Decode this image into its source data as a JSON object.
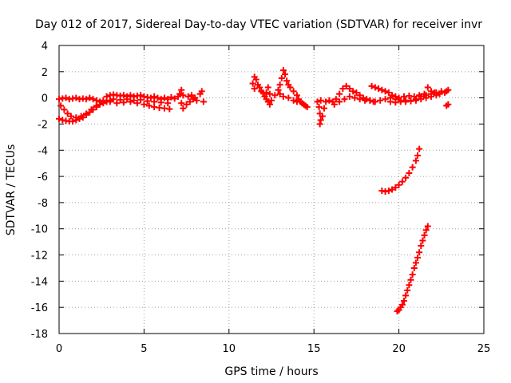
{
  "chart_data": {
    "type": "scatter",
    "title": "Day 012 of 2017, Sidereal Day-to-day VTEC variation (SDTVAR) for receiver invr",
    "xlabel": "GPS time / hours",
    "ylabel": "SDTVAR / TECUs",
    "xlim": [
      0,
      25
    ],
    "ylim": [
      -18,
      4
    ],
    "xticks": [
      0,
      5,
      10,
      15,
      20,
      25
    ],
    "yticks": [
      -18,
      -16,
      -14,
      -12,
      -10,
      -8,
      -6,
      -4,
      -2,
      0,
      2,
      4
    ],
    "grid": true,
    "legend": "none",
    "marker": "plus",
    "color": "#ff0000",
    "series": [
      {
        "points": [
          [
            0.0,
            -0.1
          ],
          [
            0.2,
            -0.05
          ],
          [
            0.4,
            0.0
          ],
          [
            0.6,
            -0.1
          ],
          [
            0.8,
            -0.05
          ],
          [
            1.0,
            0.0
          ],
          [
            1.2,
            -0.1
          ],
          [
            1.4,
            -0.05
          ],
          [
            1.6,
            -0.1
          ],
          [
            1.8,
            0.0
          ],
          [
            2.0,
            -0.1
          ],
          [
            2.2,
            -0.2
          ],
          [
            2.4,
            -0.3
          ],
          [
            2.6,
            -0.2
          ],
          [
            0.0,
            -1.6
          ],
          [
            0.2,
            -1.7
          ],
          [
            0.4,
            -1.75
          ],
          [
            0.6,
            -1.8
          ],
          [
            0.8,
            -1.8
          ],
          [
            1.0,
            -1.7
          ],
          [
            1.2,
            -1.6
          ],
          [
            1.4,
            -1.5
          ],
          [
            1.6,
            -1.3
          ],
          [
            1.8,
            -1.1
          ],
          [
            2.0,
            -0.9
          ],
          [
            2.2,
            -0.7
          ],
          [
            2.4,
            -0.5
          ],
          [
            2.6,
            -0.4
          ],
          [
            2.8,
            -0.3
          ],
          [
            3.0,
            -0.2
          ],
          [
            0.1,
            -0.6
          ],
          [
            0.3,
            -0.9
          ],
          [
            0.5,
            -1.2
          ],
          [
            0.7,
            -1.4
          ],
          [
            1.0,
            -1.5
          ],
          [
            1.3,
            -1.4
          ],
          [
            1.6,
            -1.2
          ],
          [
            1.9,
            -0.9
          ],
          [
            2.2,
            -0.6
          ],
          [
            2.8,
            0.1
          ],
          [
            3.0,
            0.2
          ],
          [
            3.2,
            0.25
          ],
          [
            3.4,
            0.2
          ],
          [
            3.6,
            0.15
          ],
          [
            3.8,
            0.2
          ],
          [
            4.0,
            0.1
          ],
          [
            4.2,
            0.2
          ],
          [
            4.4,
            0.1
          ],
          [
            4.6,
            0.15
          ],
          [
            4.8,
            0.2
          ],
          [
            5.0,
            0.1
          ],
          [
            5.2,
            0.05
          ],
          [
            5.4,
            0.0
          ],
          [
            5.6,
            0.1
          ],
          [
            5.8,
            0.0
          ],
          [
            6.0,
            -0.1
          ],
          [
            6.2,
            0.0
          ],
          [
            6.4,
            -0.1
          ],
          [
            3.0,
            -0.3
          ],
          [
            3.4,
            -0.4
          ],
          [
            3.8,
            -0.35
          ],
          [
            4.2,
            -0.3
          ],
          [
            4.6,
            -0.4
          ],
          [
            5.0,
            -0.5
          ],
          [
            5.3,
            -0.6
          ],
          [
            5.6,
            -0.7
          ],
          [
            5.9,
            -0.75
          ],
          [
            6.2,
            -0.8
          ],
          [
            6.5,
            -0.85
          ],
          [
            3.2,
            -0.1
          ],
          [
            3.6,
            -0.15
          ],
          [
            4.0,
            -0.1
          ],
          [
            4.4,
            -0.2
          ],
          [
            4.8,
            -0.15
          ],
          [
            5.2,
            -0.25
          ],
          [
            5.6,
            -0.3
          ],
          [
            6.0,
            -0.35
          ],
          [
            6.4,
            -0.4
          ],
          [
            6.6,
            0.05
          ],
          [
            6.8,
            -0.05
          ],
          [
            7.0,
            0.1
          ],
          [
            7.1,
            0.3
          ],
          [
            7.2,
            0.6
          ],
          [
            7.3,
            0.2
          ],
          [
            7.2,
            -0.4
          ],
          [
            7.3,
            -0.8
          ],
          [
            7.5,
            -0.5
          ],
          [
            7.7,
            -0.3
          ],
          [
            7.9,
            -0.1
          ],
          [
            8.1,
            -0.2
          ],
          [
            8.3,
            0.3
          ],
          [
            8.4,
            0.5
          ],
          [
            8.5,
            -0.3
          ],
          [
            7.6,
            0.1
          ],
          [
            7.8,
            0.2
          ],
          [
            8.0,
            0.0
          ],
          [
            11.4,
            1.1
          ],
          [
            11.5,
            1.6
          ],
          [
            11.6,
            1.4
          ],
          [
            11.7,
            1.0
          ],
          [
            11.8,
            0.8
          ],
          [
            11.5,
            0.7
          ],
          [
            11.9,
            0.5
          ],
          [
            12.0,
            0.4
          ],
          [
            12.1,
            0.1
          ],
          [
            12.2,
            -0.1
          ],
          [
            12.3,
            -0.3
          ],
          [
            12.4,
            -0.5
          ],
          [
            12.2,
            0.4
          ],
          [
            12.3,
            0.8
          ],
          [
            12.4,
            0.3
          ],
          [
            12.5,
            -0.2
          ],
          [
            12.7,
            0.2
          ],
          [
            12.9,
            0.6
          ],
          [
            13.0,
            1.0
          ],
          [
            13.1,
            1.5
          ],
          [
            13.2,
            2.1
          ],
          [
            13.3,
            1.8
          ],
          [
            13.4,
            1.3
          ],
          [
            13.5,
            1.0
          ],
          [
            13.6,
            0.8
          ],
          [
            13.8,
            0.5
          ],
          [
            14.0,
            0.2
          ],
          [
            14.1,
            -0.1
          ],
          [
            14.2,
            -0.3
          ],
          [
            14.4,
            -0.5
          ],
          [
            14.6,
            -0.7
          ],
          [
            13.0,
            0.3
          ],
          [
            13.2,
            0.1
          ],
          [
            13.5,
            0.0
          ],
          [
            13.8,
            -0.2
          ],
          [
            14.0,
            -0.3
          ],
          [
            14.3,
            -0.4
          ],
          [
            14.5,
            -0.6
          ],
          [
            15.2,
            -0.3
          ],
          [
            15.3,
            -0.7
          ],
          [
            15.35,
            -1.2
          ],
          [
            15.4,
            -1.7
          ],
          [
            15.35,
            -2.0
          ],
          [
            15.5,
            -1.4
          ],
          [
            15.6,
            -0.8
          ],
          [
            15.4,
            -0.2
          ],
          [
            15.7,
            -0.3
          ],
          [
            15.9,
            -0.2
          ],
          [
            16.1,
            -0.3
          ],
          [
            16.3,
            -0.1
          ],
          [
            16.5,
            0.3
          ],
          [
            16.7,
            0.7
          ],
          [
            16.9,
            0.9
          ],
          [
            17.1,
            0.7
          ],
          [
            17.3,
            0.5
          ],
          [
            17.5,
            0.4
          ],
          [
            17.7,
            0.2
          ],
          [
            17.9,
            0.0
          ],
          [
            18.1,
            -0.1
          ],
          [
            18.3,
            -0.2
          ],
          [
            18.5,
            -0.3
          ],
          [
            16.2,
            -0.5
          ],
          [
            16.5,
            -0.3
          ],
          [
            16.8,
            -0.1
          ],
          [
            17.1,
            0.1
          ],
          [
            17.4,
            0.0
          ],
          [
            17.7,
            -0.1
          ],
          [
            18.0,
            -0.2
          ],
          [
            18.3,
            -0.2
          ],
          [
            18.6,
            -0.3
          ],
          [
            18.9,
            -0.2
          ],
          [
            19.2,
            -0.1
          ],
          [
            19.5,
            0.0
          ],
          [
            19.8,
            -0.1
          ],
          [
            20.1,
            -0.2
          ],
          [
            20.4,
            -0.3
          ],
          [
            20.7,
            -0.2
          ],
          [
            21.0,
            -0.1
          ],
          [
            21.3,
            0.1
          ],
          [
            21.6,
            0.2
          ],
          [
            21.9,
            0.3
          ],
          [
            22.2,
            0.4
          ],
          [
            22.5,
            0.5
          ],
          [
            22.8,
            0.5
          ],
          [
            18.4,
            0.9
          ],
          [
            18.6,
            0.8
          ],
          [
            18.8,
            0.7
          ],
          [
            19.0,
            0.6
          ],
          [
            19.2,
            0.5
          ],
          [
            19.4,
            0.4
          ],
          [
            19.6,
            0.2
          ],
          [
            19.8,
            0.1
          ],
          [
            20.0,
            0.0
          ],
          [
            20.3,
            0.1
          ],
          [
            20.6,
            0.15
          ],
          [
            20.9,
            0.1
          ],
          [
            21.2,
            0.2
          ],
          [
            21.5,
            0.3
          ],
          [
            21.7,
            0.8
          ],
          [
            21.9,
            0.5
          ],
          [
            22.1,
            0.4
          ],
          [
            22.4,
            0.3
          ],
          [
            22.7,
            0.4
          ],
          [
            22.9,
            0.6
          ],
          [
            19.5,
            -0.3
          ],
          [
            19.8,
            -0.35
          ],
          [
            20.1,
            -0.3
          ],
          [
            20.4,
            -0.2
          ],
          [
            20.7,
            -0.25
          ],
          [
            21.0,
            -0.2
          ],
          [
            21.3,
            -0.1
          ],
          [
            21.6,
            0.0
          ],
          [
            21.9,
            0.1
          ],
          [
            22.2,
            0.2
          ],
          [
            22.8,
            -0.6
          ],
          [
            22.9,
            -0.5
          ],
          [
            19.0,
            -7.1
          ],
          [
            19.2,
            -7.15
          ],
          [
            19.4,
            -7.1
          ],
          [
            19.6,
            -7.0
          ],
          [
            19.8,
            -6.85
          ],
          [
            20.0,
            -6.65
          ],
          [
            20.2,
            -6.4
          ],
          [
            20.4,
            -6.1
          ],
          [
            20.6,
            -5.75
          ],
          [
            20.8,
            -5.3
          ],
          [
            21.0,
            -4.8
          ],
          [
            21.1,
            -4.4
          ],
          [
            21.2,
            -3.9
          ],
          [
            19.9,
            -16.3
          ],
          [
            20.0,
            -16.2
          ],
          [
            20.1,
            -16.0
          ],
          [
            20.2,
            -15.8
          ],
          [
            20.3,
            -15.5
          ],
          [
            20.4,
            -15.1
          ],
          [
            20.5,
            -14.7
          ],
          [
            20.6,
            -14.3
          ],
          [
            20.7,
            -13.9
          ],
          [
            20.8,
            -13.5
          ],
          [
            20.9,
            -13.0
          ],
          [
            21.0,
            -12.6
          ],
          [
            21.1,
            -12.2
          ],
          [
            21.2,
            -11.8
          ],
          [
            21.3,
            -11.3
          ],
          [
            21.4,
            -10.9
          ],
          [
            21.5,
            -10.5
          ],
          [
            21.6,
            -10.1
          ],
          [
            21.7,
            -9.8
          ]
        ]
      }
    ]
  }
}
